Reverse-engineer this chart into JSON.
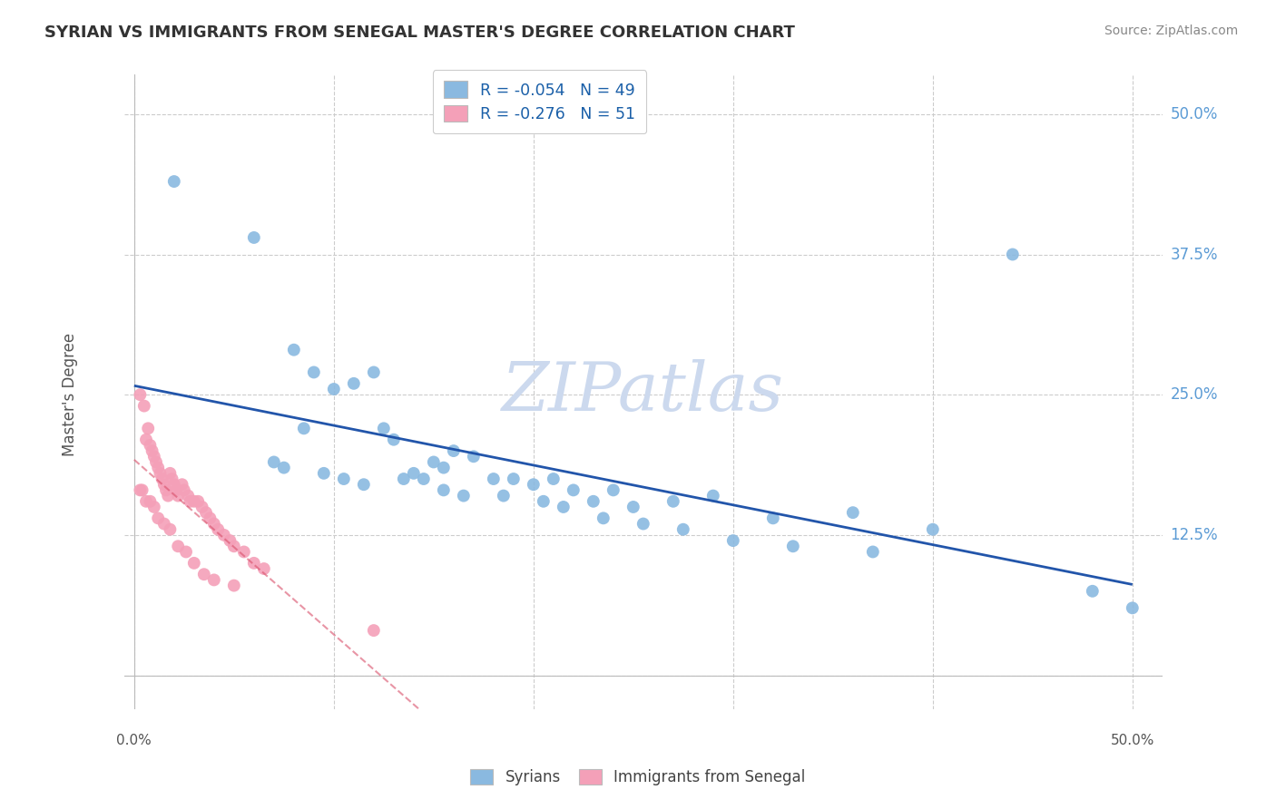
{
  "title": "SYRIAN VS IMMIGRANTS FROM SENEGAL MASTER'S DEGREE CORRELATION CHART",
  "source": "Source: ZipAtlas.com",
  "ylabel": "Master's Degree",
  "legend_label_syrians": "Syrians",
  "legend_label_senegal": "Immigrants from Senegal",
  "xmin": -0.005,
  "xmax": 0.515,
  "ymin": -0.03,
  "ymax": 0.535,
  "blue_R": -0.054,
  "blue_N": 49,
  "pink_R": -0.276,
  "pink_N": 51,
  "blue_color": "#8ab9e0",
  "pink_color": "#f4a0b8",
  "trend_blue_color": "#2255aa",
  "trend_pink_color": "#d94f6a",
  "grid_color": "#cccccc",
  "watermark_color": "#ccd9ee",
  "background_color": "#ffffff",
  "yticks": [
    0.0,
    0.125,
    0.25,
    0.375,
    0.5
  ],
  "xticks": [
    0.0,
    0.1,
    0.2,
    0.3,
    0.4,
    0.5
  ],
  "blue_x": [
    0.02,
    0.06,
    0.08,
    0.09,
    0.1,
    0.11,
    0.12,
    0.125,
    0.13,
    0.14,
    0.145,
    0.15,
    0.155,
    0.16,
    0.17,
    0.18,
    0.19,
    0.2,
    0.21,
    0.22,
    0.23,
    0.24,
    0.25,
    0.27,
    0.29,
    0.32,
    0.36,
    0.4,
    0.48,
    0.07,
    0.075,
    0.085,
    0.095,
    0.105,
    0.115,
    0.135,
    0.155,
    0.165,
    0.185,
    0.205,
    0.215,
    0.235,
    0.255,
    0.275,
    0.3,
    0.33,
    0.37,
    0.44,
    0.5
  ],
  "blue_y": [
    0.44,
    0.39,
    0.29,
    0.27,
    0.255,
    0.26,
    0.27,
    0.22,
    0.21,
    0.18,
    0.175,
    0.19,
    0.185,
    0.2,
    0.195,
    0.175,
    0.175,
    0.17,
    0.175,
    0.165,
    0.155,
    0.165,
    0.15,
    0.155,
    0.16,
    0.14,
    0.145,
    0.13,
    0.075,
    0.19,
    0.185,
    0.22,
    0.18,
    0.175,
    0.17,
    0.175,
    0.165,
    0.16,
    0.16,
    0.155,
    0.15,
    0.14,
    0.135,
    0.13,
    0.12,
    0.115,
    0.11,
    0.375,
    0.06
  ],
  "pink_x": [
    0.003,
    0.005,
    0.006,
    0.007,
    0.008,
    0.009,
    0.01,
    0.011,
    0.012,
    0.013,
    0.014,
    0.015,
    0.016,
    0.017,
    0.018,
    0.019,
    0.02,
    0.021,
    0.022,
    0.024,
    0.025,
    0.027,
    0.028,
    0.03,
    0.032,
    0.034,
    0.036,
    0.038,
    0.04,
    0.042,
    0.045,
    0.048,
    0.05,
    0.055,
    0.06,
    0.065,
    0.003,
    0.004,
    0.006,
    0.008,
    0.01,
    0.012,
    0.015,
    0.018,
    0.022,
    0.026,
    0.03,
    0.035,
    0.04,
    0.05,
    0.12
  ],
  "pink_y": [
    0.25,
    0.24,
    0.21,
    0.22,
    0.205,
    0.2,
    0.195,
    0.19,
    0.185,
    0.18,
    0.175,
    0.17,
    0.165,
    0.16,
    0.18,
    0.175,
    0.17,
    0.165,
    0.16,
    0.17,
    0.165,
    0.16,
    0.155,
    0.155,
    0.155,
    0.15,
    0.145,
    0.14,
    0.135,
    0.13,
    0.125,
    0.12,
    0.115,
    0.11,
    0.1,
    0.095,
    0.165,
    0.165,
    0.155,
    0.155,
    0.15,
    0.14,
    0.135,
    0.13,
    0.115,
    0.11,
    0.1,
    0.09,
    0.085,
    0.08,
    0.04
  ]
}
